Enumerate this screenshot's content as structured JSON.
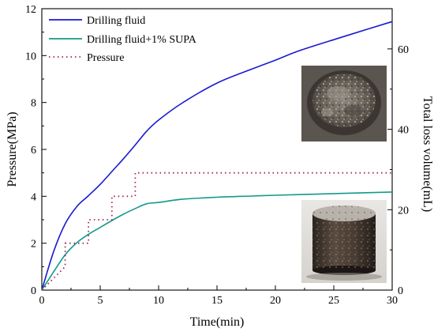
{
  "chart_data": {
    "type": "line",
    "xlabel": "Time(min)",
    "ylabel_left": "Pressure(MPa)",
    "ylabel_right": "Total loss volume(mL)",
    "xlim": [
      0,
      30
    ],
    "ylim_left": [
      0,
      12
    ],
    "ylim_right": [
      0,
      70
    ],
    "x_ticks": [
      0,
      5,
      10,
      15,
      20,
      25,
      30
    ],
    "y_left_ticks": [
      0,
      2,
      4,
      6,
      8,
      10,
      12
    ],
    "y_right_ticks": [
      0,
      20,
      40,
      60
    ],
    "legend_position": "top-left",
    "series": [
      {
        "name": "Drilling fluid",
        "axis": "right",
        "color": "#1a1ad0",
        "style": "solid",
        "x": [
          0,
          1,
          2,
          3,
          4,
          5,
          6,
          7,
          8,
          9,
          10,
          12,
          15,
          18,
          20,
          22,
          25,
          28,
          30
        ],
        "y": [
          0,
          9.5,
          16.5,
          20.8,
          23.5,
          26.3,
          29.5,
          32.7,
          36.1,
          39.6,
          42.3,
          46.5,
          51.5,
          55.0,
          57.2,
          59.5,
          62.3,
          65.0,
          66.8
        ]
      },
      {
        "name": "Drilling fluid+1% SUPA",
        "axis": "right",
        "color": "#139a8a",
        "style": "solid",
        "x": [
          0,
          1,
          2,
          3,
          4,
          5,
          6,
          7,
          8,
          9,
          10,
          12,
          15,
          18,
          20,
          25,
          30
        ],
        "y": [
          0,
          4.5,
          8.8,
          11.8,
          13.9,
          15.6,
          17.3,
          18.9,
          20.3,
          21.5,
          21.8,
          22.6,
          23.1,
          23.4,
          23.6,
          24.0,
          24.4
        ]
      },
      {
        "name": "Pressure",
        "axis": "left",
        "color": "#a0215a",
        "style": "dotted",
        "x": [
          0,
          2,
          2,
          4,
          4,
          6,
          6,
          8,
          8,
          30
        ],
        "y": [
          0,
          1,
          2,
          2,
          3,
          3,
          4,
          4,
          5,
          5
        ]
      }
    ],
    "insets": [
      "filter-cake-top-view-photo",
      "core-sample-side-view-photo"
    ]
  }
}
